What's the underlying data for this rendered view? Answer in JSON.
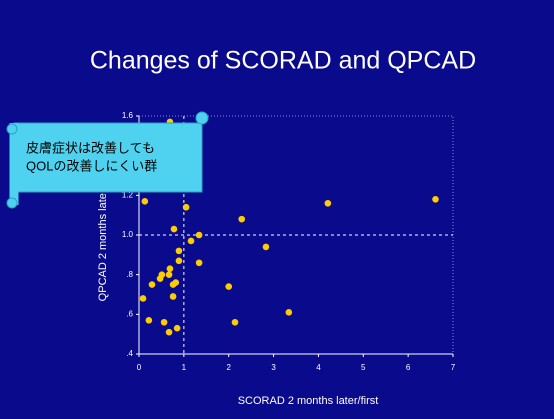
{
  "chart_data": {
    "type": "scatter",
    "title": "Changes of SCORAD and QPCAD",
    "x_label": "SCORAD  2 months later/first",
    "y_label": "QPCAD  2 months later/first",
    "annotation": [
      "皮膚症状は改善しても",
      "QOLの改善しにくい群"
    ],
    "color": "#ffcc00",
    "x": [
      0.69,
      0.13,
      1.05,
      2.29,
      0.78,
      1.34,
      1.16,
      2.83,
      0.89,
      0.89,
      1.34,
      0.69,
      0.51,
      0.67,
      0.47,
      0.82,
      0.76,
      0.29,
      2.0,
      0.76,
      0.09,
      3.34,
      0.22,
      0.56,
      2.14,
      0.85,
      0.67,
      4.21,
      6.61
    ],
    "values": [
      1.57,
      1.17,
      1.14,
      1.08,
      1.03,
      1.0,
      0.97,
      0.94,
      0.92,
      0.87,
      0.86,
      0.83,
      0.8,
      0.8,
      0.78,
      0.76,
      0.75,
      0.75,
      0.74,
      0.69,
      0.68,
      0.61,
      0.57,
      0.56,
      0.56,
      0.53,
      0.51,
      1.16,
      1.18
    ],
    "xlim": [
      0,
      7
    ],
    "xticks": [
      0,
      1,
      2,
      3,
      4,
      5,
      6,
      7
    ],
    "ylim": [
      0.4,
      1.6
    ],
    "yticks": [
      {
        "value": 0.4,
        "label": ".4"
      },
      {
        "value": 0.6,
        "label": ".6"
      },
      {
        "value": 0.8,
        "label": ".8"
      },
      {
        "value": 1.0,
        "label": "1.0"
      },
      {
        "value": 1.2,
        "label": "1.2"
      },
      {
        "value": 1.4,
        "label": "1.4"
      },
      {
        "value": 1.6,
        "label": "1.6"
      }
    ],
    "reference_lines": {
      "x": 1,
      "y": 1
    }
  }
}
